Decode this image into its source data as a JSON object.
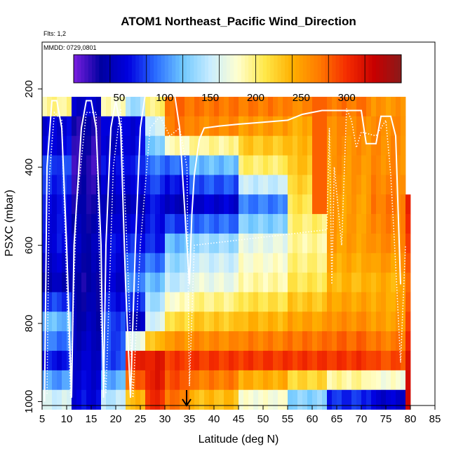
{
  "header": {
    "title": "ATOM1 Northeast_Pacific Wind_Direction",
    "flights": "Flts: 1,2",
    "dates": "MMDD: 0729,0801"
  },
  "chart_data": {
    "type": "heatmap",
    "title": "ATOM1 Northeast_Pacific Wind_Direction",
    "xlabel": "Latitude (deg N)",
    "ylabel": "PSXC (mbar)",
    "xlim": [
      5,
      85
    ],
    "ylim": [
      1010,
      80
    ],
    "y_reversed": true,
    "xticks": [
      "5",
      "10",
      "15",
      "20",
      "25",
      "30",
      "35",
      "40",
      "45",
      "50",
      "55",
      "60",
      "65",
      "70",
      "75",
      "80",
      "85"
    ],
    "yticks": [
      "200",
      "400",
      "600",
      "800",
      "1000"
    ],
    "colorbar": {
      "range": [
        0,
        360
      ],
      "ticks": [
        "50",
        "100",
        "150",
        "200",
        "250",
        "300"
      ],
      "colors": [
        "#7b1fe0",
        "#0000a0",
        "#0000e0",
        "#2a6cff",
        "#6fc8ff",
        "#c8ecff",
        "#ffffd0",
        "#ffe84a",
        "#ffb000",
        "#ff7a00",
        "#f52c00",
        "#c80000",
        "#8a1a1a"
      ]
    },
    "grid": false,
    "marker": {
      "label": "arrow",
      "x": 35
    },
    "column_profiles": [
      {
        "x": [
          5,
          11
        ],
        "values": [
          [
            200,
            320
          ],
          [
            300,
            40
          ],
          [
            400,
            80
          ],
          [
            500,
            60
          ],
          [
            600,
            60
          ],
          [
            700,
            40
          ],
          [
            800,
            120
          ],
          [
            900,
            60
          ],
          [
            1000,
            160
          ]
        ]
      },
      {
        "x": [
          11,
          17
        ],
        "values": [
          [
            200,
            70
          ],
          [
            300,
            25
          ],
          [
            400,
            20
          ],
          [
            500,
            30
          ],
          [
            600,
            40
          ],
          [
            700,
            30
          ],
          [
            800,
            40
          ],
          [
            900,
            50
          ],
          [
            1000,
            60
          ]
        ]
      },
      {
        "x": [
          17,
          22
        ],
        "values": [
          [
            200,
            300
          ],
          [
            300,
            40
          ],
          [
            400,
            60
          ],
          [
            500,
            40
          ],
          [
            600,
            60
          ],
          [
            700,
            50
          ],
          [
            800,
            80
          ],
          [
            900,
            80
          ],
          [
            1000,
            150
          ]
        ]
      },
      {
        "x": [
          22,
          26
        ],
        "values": [
          [
            200,
            210
          ],
          [
            300,
            50
          ],
          [
            400,
            70
          ],
          [
            500,
            40
          ],
          [
            600,
            70
          ],
          [
            700,
            100
          ],
          [
            800,
            40
          ],
          [
            900,
            320
          ],
          [
            1000,
            230
          ]
        ]
      },
      {
        "x": [
          26,
          30
        ],
        "values": [
          [
            200,
            240
          ],
          [
            300,
            150
          ],
          [
            400,
            90
          ],
          [
            500,
            60
          ],
          [
            600,
            70
          ],
          [
            700,
            120
          ],
          [
            800,
            160
          ],
          [
            900,
            320
          ],
          [
            1000,
            300
          ]
        ]
      },
      {
        "x": [
          30,
          35
        ],
        "values": [
          [
            200,
            280
          ],
          [
            300,
            270
          ],
          [
            400,
            80
          ],
          [
            500,
            40
          ],
          [
            600,
            120
          ],
          [
            700,
            150
          ],
          [
            800,
            220
          ],
          [
            900,
            300
          ],
          [
            1000,
            270
          ]
        ]
      },
      {
        "x": [
          35,
          45
        ],
        "values": [
          [
            200,
            280
          ],
          [
            300,
            260
          ],
          [
            400,
            110
          ],
          [
            500,
            50
          ],
          [
            600,
            140
          ],
          [
            700,
            170
          ],
          [
            800,
            230
          ],
          [
            900,
            300
          ],
          [
            1000,
            230
          ]
        ]
      },
      {
        "x": [
          45,
          55
        ],
        "values": [
          [
            200,
            285
          ],
          [
            300,
            250
          ],
          [
            400,
            200
          ],
          [
            500,
            90
          ],
          [
            600,
            170
          ],
          [
            700,
            190
          ],
          [
            800,
            240
          ],
          [
            900,
            300
          ],
          [
            1000,
            170
          ]
        ]
      },
      {
        "x": [
          55,
          63
        ],
        "values": [
          [
            200,
            280
          ],
          [
            300,
            240
          ],
          [
            400,
            230
          ],
          [
            500,
            210
          ],
          [
            600,
            190
          ],
          [
            700,
            210
          ],
          [
            800,
            250
          ],
          [
            900,
            300
          ],
          [
            1000,
            120
          ]
        ]
      },
      {
        "x": [
          63,
          72
        ],
        "values": [
          [
            200,
            280
          ],
          [
            300,
            260
          ],
          [
            400,
            255
          ],
          [
            500,
            250
          ],
          [
            600,
            250
          ],
          [
            700,
            235
          ],
          [
            800,
            260
          ],
          [
            900,
            300
          ],
          [
            1000,
            60
          ]
        ]
      },
      {
        "x": [
          72,
          79
        ],
        "values": [
          [
            200,
            250
          ],
          [
            300,
            260
          ],
          [
            400,
            260
          ],
          [
            500,
            270
          ],
          [
            600,
            260
          ],
          [
            700,
            240
          ],
          [
            800,
            250
          ],
          [
            900,
            290
          ],
          [
            1000,
            40
          ]
        ]
      },
      {
        "x": [
          79,
          80
        ],
        "values": [
          [
            500,
            300
          ],
          [
            600,
            290
          ],
          [
            700,
            280
          ],
          [
            800,
            300
          ],
          [
            900,
            320
          ],
          [
            1000,
            320
          ]
        ]
      }
    ]
  }
}
